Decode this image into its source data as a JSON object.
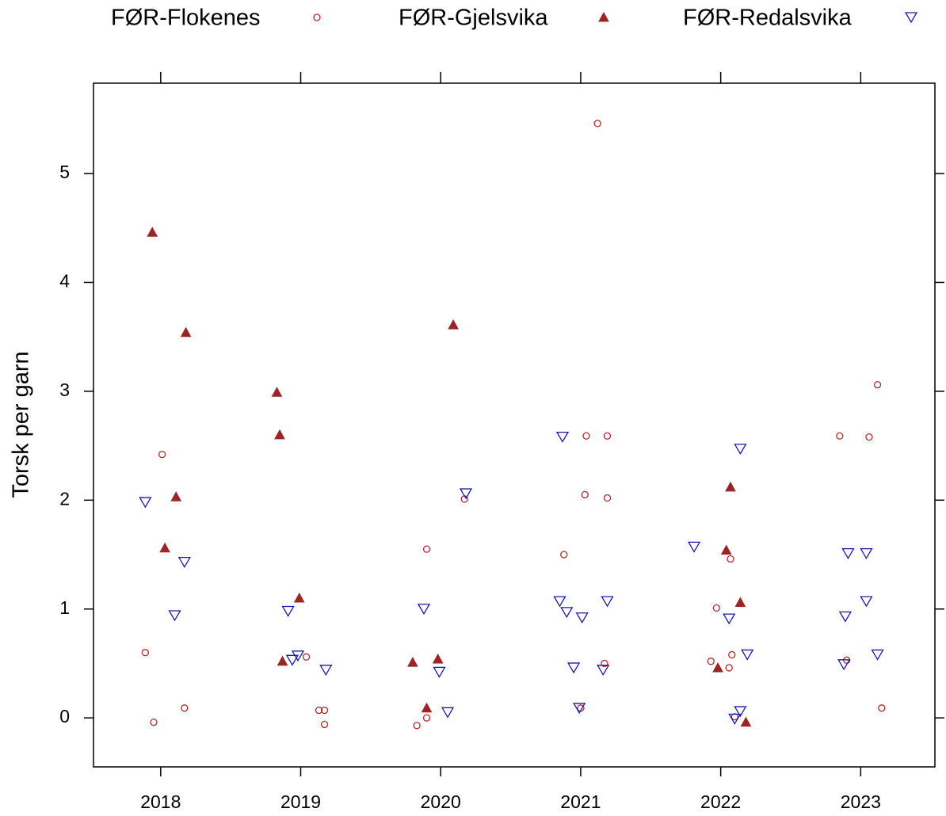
{
  "chart_data": {
    "type": "scatter",
    "ylabel": "Torsk per garn",
    "xlim": [
      2017.52,
      2023.53
    ],
    "ylim": [
      -0.45,
      5.83
    ],
    "xticks": [
      2018,
      2019,
      2020,
      2021,
      2022,
      2023
    ],
    "yticks": [
      0,
      1,
      2,
      3,
      4,
      5
    ],
    "legend": "top",
    "series": [
      {
        "name": "FØR-Flokenes",
        "color": "#b22a2a",
        "marker": "circle",
        "x": [
          2017.89,
          2017.95,
          2018.01,
          2018.17,
          2019.04,
          2019.13,
          2019.17,
          2019.17,
          2019.83,
          2019.9,
          2019.9,
          2020.17,
          2021.12,
          2020.88,
          2021.04,
          2021.03,
          2021.19,
          2021.19,
          2021.17,
          2021.0,
          2021.93,
          2021.97,
          2022.07,
          2022.06,
          2022.08,
          2022.1,
          2022.85,
          2023.06,
          2023.12,
          2022.9,
          2023.15
        ],
        "values": [
          0.6,
          -0.04,
          2.42,
          0.09,
          0.56,
          0.07,
          0.07,
          -0.06,
          -0.07,
          1.55,
          0.0,
          2.01,
          5.46,
          1.5,
          2.59,
          2.05,
          2.59,
          2.02,
          0.5,
          0.09,
          0.52,
          1.01,
          1.46,
          0.46,
          0.58,
          0.01,
          2.59,
          2.58,
          3.06,
          0.53,
          0.09
        ]
      },
      {
        "name": "FØR-Gjelsvika",
        "color": "#9b2424",
        "marker": "triangle-up",
        "x": [
          2017.94,
          2018.18,
          2018.11,
          2018.03,
          2018.83,
          2018.85,
          2018.99,
          2018.87,
          2019.8,
          2019.98,
          2019.9,
          2020.09,
          2022.07,
          2022.04,
          2022.14,
          2021.98,
          2022.18
        ],
        "values": [
          4.46,
          3.54,
          2.03,
          1.56,
          2.99,
          2.6,
          1.1,
          0.52,
          0.51,
          0.54,
          0.09,
          3.61,
          2.12,
          1.54,
          1.06,
          0.46,
          -0.04
        ]
      },
      {
        "name": "FØR-Redalsvika",
        "color": "#1a1aa8",
        "marker": "triangle-down",
        "x": [
          2017.89,
          2018.17,
          2018.1,
          2018.91,
          2018.98,
          2018.94,
          2019.18,
          2019.88,
          2019.99,
          2020.05,
          2020.18,
          2020.87,
          2020.85,
          2020.9,
          2021.01,
          2020.95,
          2020.99,
          2021.19,
          2021.16,
          2021.81,
          2022.14,
          2022.06,
          2022.19,
          2022.14,
          2022.1,
          2022.91,
          2023.04,
          2022.89,
          2023.04,
          2022.88,
          2023.12
        ],
        "values": [
          1.98,
          1.43,
          0.94,
          0.98,
          0.57,
          0.53,
          0.44,
          1.0,
          0.42,
          0.05,
          2.06,
          2.58,
          1.07,
          0.97,
          0.92,
          0.46,
          0.09,
          1.07,
          0.44,
          1.57,
          2.47,
          0.91,
          0.58,
          0.06,
          -0.01,
          1.51,
          1.51,
          0.93,
          1.07,
          0.49,
          0.58
        ]
      }
    ]
  }
}
